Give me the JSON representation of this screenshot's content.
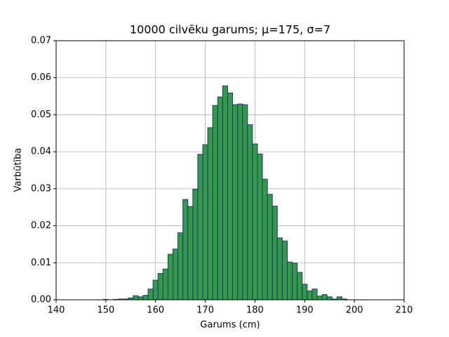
{
  "chart_data": {
    "type": "histogram",
    "title": "10000 cilvēku garums; μ=175, σ=7",
    "xlabel": "Garums (cm)",
    "ylabel": "Varbūtība",
    "bins": [
      149.5,
      150.5,
      151.5,
      152.5,
      153.5,
      154.5,
      155.5,
      156.5,
      157.5,
      158.5,
      159.5,
      160.5,
      161.5,
      162.5,
      163.5,
      164.5,
      165.5,
      166.5,
      167.5,
      168.5,
      169.5,
      170.5,
      171.5,
      172.5,
      173.5,
      174.5,
      175.5,
      176.5,
      177.5,
      178.5,
      179.5,
      180.5,
      181.5,
      182.5,
      183.5,
      184.5,
      185.5,
      186.5,
      187.5,
      188.5,
      189.5,
      190.5,
      191.5,
      192.5,
      193.5,
      194.5,
      195.5,
      196.5,
      197.5,
      198.5,
      199.5
    ],
    "values": [
      0.0001,
      0,
      0.0001,
      0.0002,
      0.0002,
      0.0005,
      0.0011,
      0.0008,
      0.0012,
      0.0029,
      0.0053,
      0.0071,
      0.0083,
      0.0123,
      0.0137,
      0.0181,
      0.0271,
      0.0252,
      0.0299,
      0.0393,
      0.0419,
      0.0465,
      0.0525,
      0.0548,
      0.0578,
      0.0559,
      0.0527,
      0.0529,
      0.0527,
      0.0473,
      0.0421,
      0.0394,
      0.0326,
      0.0285,
      0.0253,
      0.0167,
      0.0159,
      0.0102,
      0.0099,
      0.0074,
      0.0042,
      0.0024,
      0.0029,
      0.001,
      0.0014,
      0.0008,
      0.0002,
      0.0008,
      0.0002,
      0
    ],
    "color": "#339a48",
    "edgecolor": "#24357a",
    "xlim": [
      140,
      210
    ],
    "xticks": [
      140,
      150,
      160,
      170,
      180,
      190,
      200,
      210
    ],
    "ylim": [
      0,
      0.07
    ],
    "yticks": [
      {
        "value": 0,
        "label": "0.00"
      },
      {
        "value": 0.01,
        "label": "0.01"
      },
      {
        "value": 0.02,
        "label": "0.02"
      },
      {
        "value": 0.03,
        "label": "0.03"
      },
      {
        "value": 0.04,
        "label": "0.04"
      },
      {
        "value": 0.05,
        "label": "0.05"
      },
      {
        "value": 0.06,
        "label": "0.06"
      },
      {
        "value": 0.07,
        "label": "0.07"
      }
    ],
    "grid": true
  }
}
